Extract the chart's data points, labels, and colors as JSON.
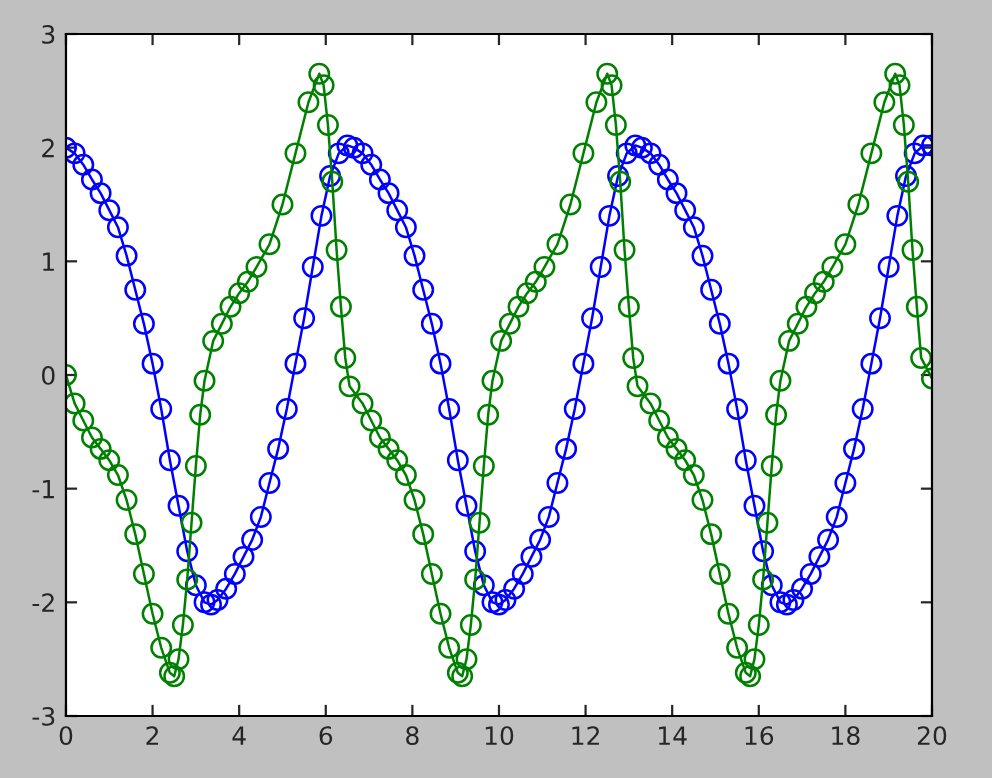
{
  "chart_data": {
    "type": "line",
    "xlim": [
      0,
      20
    ],
    "ylim": [
      -3,
      3
    ],
    "xticks": [
      0,
      2,
      4,
      6,
      8,
      10,
      12,
      14,
      16,
      18,
      20
    ],
    "yticks": [
      -3,
      -2,
      -1,
      0,
      1,
      2,
      3
    ],
    "grid": false,
    "marker": "circle",
    "line_style": "solid",
    "series": [
      {
        "color": "#0000ff",
        "x": [
          0,
          0.2,
          0.4,
          0.6,
          0.8,
          1.0,
          1.2,
          1.4,
          1.6,
          1.8,
          2.0,
          2.2,
          2.4,
          2.6,
          2.8,
          3.0,
          3.2,
          3.35,
          3.5,
          3.7,
          3.9,
          4.1,
          4.3,
          4.5,
          4.7,
          4.9,
          5.1,
          5.3,
          5.5,
          5.7,
          5.9,
          6.1,
          6.3,
          6.5,
          6.65,
          6.85,
          7.05,
          7.25,
          7.45,
          7.65,
          7.85,
          8.05,
          8.25,
          8.45,
          8.65,
          8.85,
          9.05,
          9.25,
          9.45,
          9.65,
          9.85,
          10.0,
          10.15,
          10.35,
          10.55,
          10.75,
          10.95,
          11.15,
          11.35,
          11.55,
          11.75,
          11.95,
          12.15,
          12.35,
          12.55,
          12.75,
          12.95,
          13.15,
          13.3,
          13.5,
          13.7,
          13.9,
          14.1,
          14.3,
          14.5,
          14.7,
          14.9,
          15.1,
          15.3,
          15.5,
          15.7,
          15.9,
          16.1,
          16.3,
          16.5,
          16.65,
          16.8,
          17.0,
          17.2,
          17.4,
          17.6,
          17.8,
          18.0,
          18.2,
          18.4,
          18.6,
          18.8,
          19.0,
          19.2,
          19.4,
          19.6,
          19.8,
          20
        ],
        "values": [
          2,
          1.95,
          1.85,
          1.72,
          1.6,
          1.45,
          1.3,
          1.05,
          0.75,
          0.45,
          0.1,
          -0.3,
          -0.75,
          -1.15,
          -1.55,
          -1.85,
          -2.0,
          -2.02,
          -1.98,
          -1.88,
          -1.75,
          -1.6,
          -1.45,
          -1.25,
          -0.95,
          -0.65,
          -0.3,
          0.1,
          0.5,
          0.95,
          1.4,
          1.75,
          1.95,
          2.02,
          2,
          1.95,
          1.85,
          1.72,
          1.6,
          1.45,
          1.3,
          1.05,
          0.75,
          0.45,
          0.1,
          -0.3,
          -0.75,
          -1.15,
          -1.55,
          -1.85,
          -2.0,
          -2.02,
          -1.98,
          -1.88,
          -1.75,
          -1.6,
          -1.45,
          -1.25,
          -0.95,
          -0.65,
          -0.3,
          0.1,
          0.5,
          0.95,
          1.4,
          1.75,
          1.95,
          2.02,
          2,
          1.95,
          1.85,
          1.72,
          1.6,
          1.45,
          1.3,
          1.05,
          0.75,
          0.45,
          0.1,
          -0.3,
          -0.75,
          -1.15,
          -1.55,
          -1.85,
          -2.0,
          -2.02,
          -1.98,
          -1.88,
          -1.75,
          -1.6,
          -1.45,
          -1.25,
          -0.95,
          -0.65,
          -0.3,
          0.1,
          0.5,
          0.95,
          1.4,
          1.75,
          1.95,
          2.02,
          2.02
        ]
      },
      {
        "color": "#008000",
        "x": [
          0,
          0.2,
          0.4,
          0.6,
          0.8,
          1.0,
          1.2,
          1.4,
          1.6,
          1.8,
          2.0,
          2.2,
          2.4,
          2.5,
          2.6,
          2.7,
          2.8,
          2.9,
          3.0,
          3.1,
          3.2,
          3.4,
          3.6,
          3.8,
          4.0,
          4.2,
          4.4,
          4.7,
          5.0,
          5.3,
          5.6,
          5.85,
          5.95,
          6.05,
          6.15,
          6.25,
          6.35,
          6.45,
          6.55,
          6.85,
          7.05,
          7.25,
          7.45,
          7.65,
          7.85,
          8.05,
          8.25,
          8.45,
          8.65,
          8.85,
          9.05,
          9.15,
          9.25,
          9.35,
          9.45,
          9.55,
          9.65,
          9.75,
          9.85,
          10.05,
          10.25,
          10.45,
          10.65,
          10.85,
          11.05,
          11.35,
          11.65,
          11.95,
          12.25,
          12.5,
          12.6,
          12.7,
          12.8,
          12.9,
          13.0,
          13.1,
          13.2,
          13.5,
          13.7,
          13.9,
          14.1,
          14.3,
          14.5,
          14.7,
          14.9,
          15.1,
          15.3,
          15.5,
          15.7,
          15.8,
          15.9,
          16.0,
          16.1,
          16.2,
          16.3,
          16.4,
          16.5,
          16.7,
          16.9,
          17.1,
          17.3,
          17.5,
          17.7,
          18.0,
          18.3,
          18.6,
          18.9,
          19.15,
          19.25,
          19.35,
          19.45,
          19.55,
          19.65,
          19.75,
          20
        ],
        "values": [
          0,
          -0.25,
          -0.4,
          -0.55,
          -0.65,
          -0.75,
          -0.88,
          -1.1,
          -1.4,
          -1.75,
          -2.1,
          -2.4,
          -2.62,
          -2.65,
          -2.5,
          -2.2,
          -1.8,
          -1.3,
          -0.8,
          -0.35,
          -0.05,
          0.3,
          0.45,
          0.6,
          0.72,
          0.82,
          0.95,
          1.15,
          1.5,
          1.95,
          2.4,
          2.65,
          2.55,
          2.2,
          1.7,
          1.1,
          0.6,
          0.15,
          -0.1,
          -0.25,
          -0.4,
          -0.55,
          -0.65,
          -0.75,
          -0.88,
          -1.1,
          -1.4,
          -1.75,
          -2.1,
          -2.4,
          -2.62,
          -2.65,
          -2.5,
          -2.2,
          -1.8,
          -1.3,
          -0.8,
          -0.35,
          -0.05,
          0.3,
          0.45,
          0.6,
          0.72,
          0.82,
          0.95,
          1.15,
          1.5,
          1.95,
          2.4,
          2.65,
          2.55,
          2.2,
          1.7,
          1.1,
          0.6,
          0.15,
          -0.1,
          -0.25,
          -0.4,
          -0.55,
          -0.65,
          -0.75,
          -0.88,
          -1.1,
          -1.4,
          -1.75,
          -2.1,
          -2.4,
          -2.62,
          -2.65,
          -2.5,
          -2.2,
          -1.8,
          -1.3,
          -0.8,
          -0.35,
          -0.05,
          0.3,
          0.45,
          0.6,
          0.72,
          0.82,
          0.95,
          1.15,
          1.5,
          1.95,
          2.4,
          2.65,
          2.55,
          2.2,
          1.7,
          1.1,
          0.6,
          0.15,
          -0.03
        ]
      }
    ]
  }
}
